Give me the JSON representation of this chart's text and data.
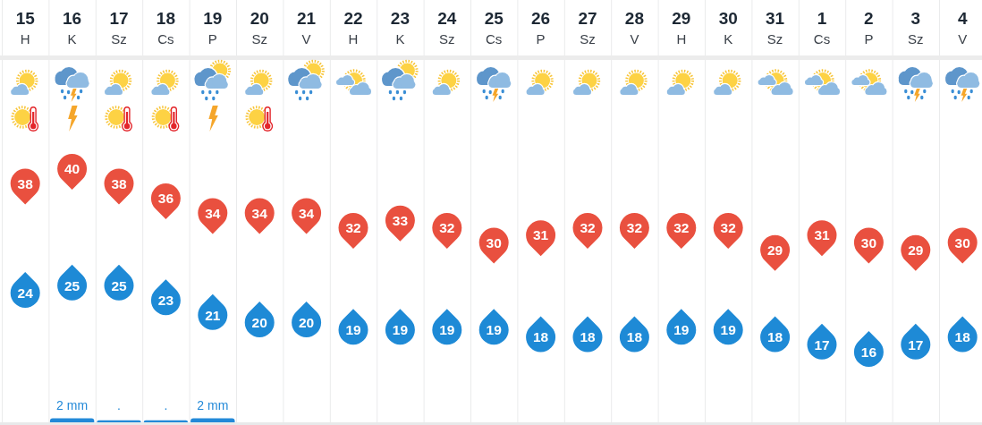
{
  "chart_data": [
    {
      "type": "scatter",
      "categories": [
        "15\nH",
        "16\nK",
        "17\nSz",
        "18\nCs",
        "19\nP",
        "20\nSz",
        "21\nV",
        "22\nH",
        "23\nK",
        "24\nSz",
        "25\nCs",
        "26\nP",
        "27\nSz",
        "28\nV",
        "29\nH",
        "30\nK",
        "31\nSz",
        "1\nCs",
        "2\nP",
        "3\nSz",
        "4\nV"
      ],
      "series": [
        {
          "color": "#e9503f",
          "values": [
            38,
            40,
            38,
            36,
            34,
            34,
            34,
            32,
            33,
            32,
            30,
            31,
            32,
            32,
            32,
            32,
            29,
            31,
            30,
            29,
            30
          ]
        },
        {
          "color": "#1e8ad6",
          "values": [
            24,
            25,
            25,
            23,
            21,
            20,
            20,
            19,
            19,
            19,
            19,
            18,
            18,
            18,
            19,
            19,
            18,
            17,
            16,
            17,
            18
          ]
        }
      ],
      "data_labels": true,
      "grid": "x"
    },
    {
      "type": "bar",
      "categories": [
        null,
        null,
        null,
        null,
        null,
        null,
        null,
        null,
        null,
        null,
        null,
        null,
        null,
        null,
        null,
        null,
        null,
        null,
        null,
        null,
        null
      ],
      "color": "#2389d8",
      "values": [
        null,
        2,
        1,
        1,
        2,
        null,
        null,
        null,
        null,
        null,
        null,
        null,
        null,
        null,
        null,
        null,
        null,
        null,
        null,
        null,
        null
      ],
      "value_labels": [
        null,
        "2 mm",
        ".",
        ".",
        "2 mm",
        null,
        null,
        null,
        null,
        null,
        null,
        null,
        null,
        null,
        null,
        null,
        null,
        null,
        null,
        null,
        null
      ]
    }
  ]
}
